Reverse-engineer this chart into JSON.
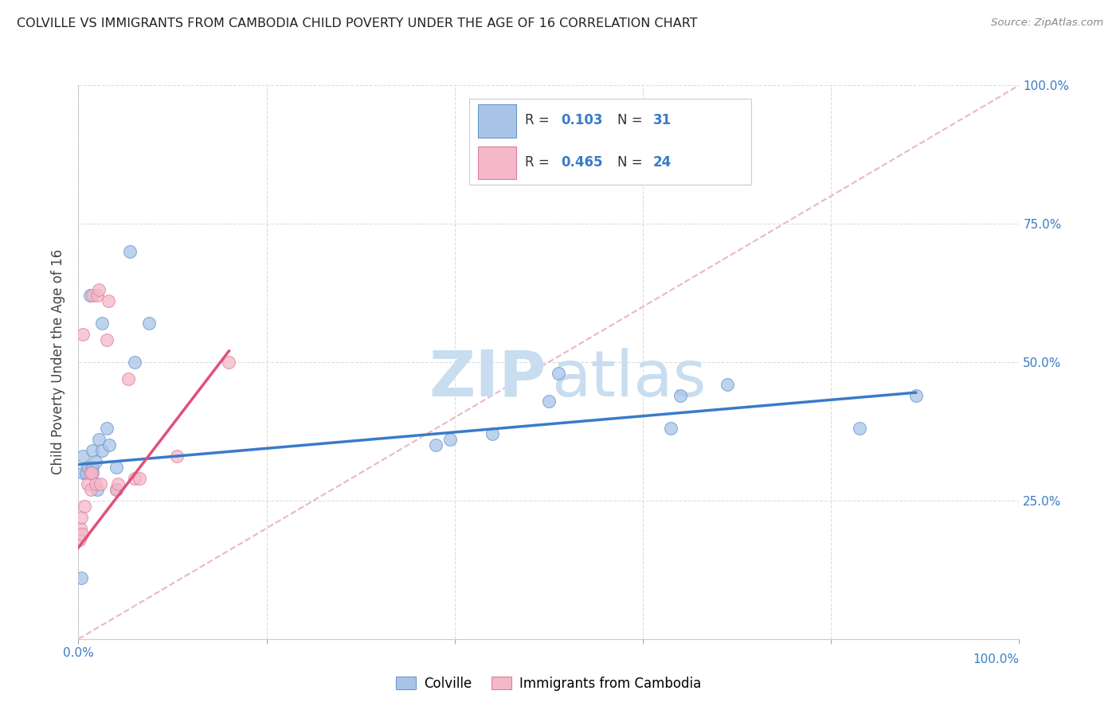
{
  "title": "COLVILLE VS IMMIGRANTS FROM CAMBODIA CHILD POVERTY UNDER THE AGE OF 16 CORRELATION CHART",
  "source": "Source: ZipAtlas.com",
  "ylabel": "Child Poverty Under the Age of 16",
  "xlim": [
    0,
    1.0
  ],
  "ylim": [
    0,
    1.0
  ],
  "right_ytick_labels": [
    "100.0%",
    "75.0%",
    "50.0%",
    "25.0%"
  ],
  "right_ytick_positions": [
    1.0,
    0.75,
    0.5,
    0.25
  ],
  "watermark_zip_color": "#c8ddf0",
  "watermark_atlas_color": "#c8ddf0",
  "line1_color": "#3a7bc8",
  "line2_color": "#e0507a",
  "diagonal_color": "#e8b8c8",
  "colville_color": "#aac4e8",
  "cambodia_color": "#f4b8c8",
  "colville_edge": "#6699cc",
  "cambodia_edge": "#e080a0",
  "colville_points_x": [
    0.003,
    0.005,
    0.005,
    0.008,
    0.01,
    0.012,
    0.015,
    0.015,
    0.015,
    0.018,
    0.02,
    0.022,
    0.025,
    0.025,
    0.03,
    0.033,
    0.04,
    0.04,
    0.055,
    0.06,
    0.075,
    0.38,
    0.395,
    0.44,
    0.5,
    0.51,
    0.63,
    0.64,
    0.69,
    0.83,
    0.89
  ],
  "colville_points_y": [
    0.11,
    0.3,
    0.33,
    0.3,
    0.31,
    0.62,
    0.3,
    0.31,
    0.34,
    0.32,
    0.27,
    0.36,
    0.34,
    0.57,
    0.38,
    0.35,
    0.27,
    0.31,
    0.7,
    0.5,
    0.57,
    0.35,
    0.36,
    0.37,
    0.43,
    0.48,
    0.38,
    0.44,
    0.46,
    0.38,
    0.44
  ],
  "cambodia_points_x": [
    0.001,
    0.002,
    0.003,
    0.004,
    0.005,
    0.006,
    0.01,
    0.012,
    0.013,
    0.014,
    0.015,
    0.018,
    0.02,
    0.022,
    0.023,
    0.03,
    0.032,
    0.04,
    0.042,
    0.053,
    0.06,
    0.065,
    0.105,
    0.16
  ],
  "cambodia_points_y": [
    0.18,
    0.2,
    0.22,
    0.19,
    0.55,
    0.24,
    0.28,
    0.3,
    0.27,
    0.3,
    0.62,
    0.28,
    0.62,
    0.63,
    0.28,
    0.54,
    0.61,
    0.27,
    0.28,
    0.47,
    0.29,
    0.29,
    0.33,
    0.5
  ],
  "colville_trendline_x": [
    0.0,
    0.89
  ],
  "colville_trendline_y": [
    0.315,
    0.445
  ],
  "cambodia_trendline_x": [
    0.0,
    0.16
  ],
  "cambodia_trendline_y": [
    0.165,
    0.52
  ],
  "dot_size": 130,
  "dot_alpha": 0.75,
  "grid_color": "#dddddd",
  "background_color": "#ffffff",
  "legend_color1": "#aac4e8",
  "legend_color2": "#f4b8c8",
  "legend_edge1": "#6699cc",
  "legend_edge2": "#e080a0",
  "text_color_blue": "#3a7bc8",
  "text_color_black": "#333333"
}
